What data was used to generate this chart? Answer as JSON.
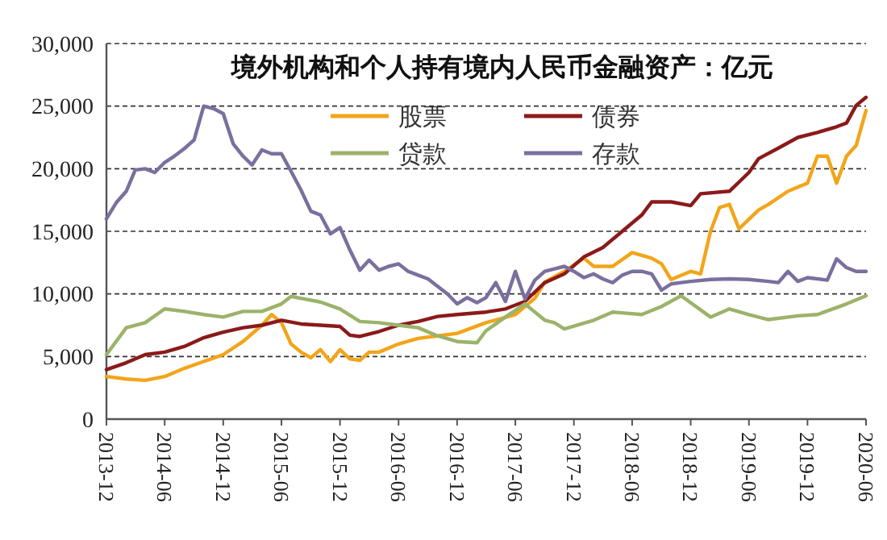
{
  "chart_data": {
    "type": "line",
    "title": "境外机构和个人持有境内人民币金融资产：亿元",
    "xlim": [
      "2013-12",
      "2020-06"
    ],
    "xticks": [
      "2013-12",
      "2014-06",
      "2014-12",
      "2015-06",
      "2015-12",
      "2016-06",
      "2016-12",
      "2017-06",
      "2017-12",
      "2018-06",
      "2018-12",
      "2019-06",
      "2019-12",
      "2020-06"
    ],
    "ylim": [
      0,
      30000
    ],
    "yticks": [
      {
        "value": 0,
        "label": "0"
      },
      {
        "value": 5000,
        "label": "5,000"
      },
      {
        "value": 10000,
        "label": "10,000"
      },
      {
        "value": 15000,
        "label": "15,000"
      },
      {
        "value": 20000,
        "label": "20,000"
      },
      {
        "value": 25000,
        "label": "25,000"
      },
      {
        "value": 30000,
        "label": "30,000"
      }
    ],
    "grid": "y",
    "legend": "top",
    "line_style": "solid",
    "marker": "none",
    "series": [
      {
        "name": "股票",
        "color": "#f2a51a",
        "x": [
          "2013-12",
          "2014-02",
          "2014-04",
          "2014-06",
          "2014-08",
          "2014-10",
          "2014-12",
          "2015-02",
          "2015-04",
          "2015-05",
          "2015-06",
          "2015-07",
          "2015-08",
          "2015-09",
          "2015-10",
          "2015-11",
          "2015-12",
          "2016-01",
          "2016-02",
          "2016-03",
          "2016-04",
          "2016-06",
          "2016-08",
          "2016-10",
          "2016-12",
          "2017-03",
          "2017-06",
          "2017-08",
          "2017-09",
          "2017-11",
          "2018-01",
          "2018-02",
          "2018-04",
          "2018-06",
          "2018-08",
          "2018-09",
          "2018-10",
          "2018-12",
          "2019-01",
          "2019-02",
          "2019-03",
          "2019-04",
          "2019-05",
          "2019-07",
          "2019-08",
          "2019-10",
          "2019-12",
          "2020-01",
          "2020-02",
          "2020-03",
          "2020-04",
          "2020-05",
          "2020-06"
        ],
        "values": [
          3400,
          3200,
          3100,
          3400,
          4050,
          4600,
          5150,
          6200,
          7500,
          8350,
          7700,
          6000,
          5350,
          4900,
          5550,
          4600,
          5550,
          4800,
          4700,
          5350,
          5350,
          6000,
          6450,
          6650,
          6850,
          7700,
          8350,
          9650,
          10950,
          11800,
          12850,
          12200,
          12200,
          13300,
          12850,
          12400,
          11150,
          11800,
          11600,
          15000,
          16900,
          17150,
          15200,
          16700,
          17150,
          18200,
          18850,
          21000,
          21000,
          18850,
          21000,
          21850,
          24650
        ]
      },
      {
        "name": "债券",
        "color": "#8b1a1a",
        "x": [
          "2013-12",
          "2014-02",
          "2014-04",
          "2014-06",
          "2014-08",
          "2014-10",
          "2014-12",
          "2015-02",
          "2015-04",
          "2015-06",
          "2015-08",
          "2015-10",
          "2015-12",
          "2016-01",
          "2016-02",
          "2016-04",
          "2016-06",
          "2016-08",
          "2016-10",
          "2016-12",
          "2017-03",
          "2017-05",
          "2017-07",
          "2017-09",
          "2017-11",
          "2018-01",
          "2018-03",
          "2018-05",
          "2018-07",
          "2018-08",
          "2018-10",
          "2018-12",
          "2019-01",
          "2019-04",
          "2019-06",
          "2019-07",
          "2019-09",
          "2019-11",
          "2020-01",
          "2020-03",
          "2020-04",
          "2020-05",
          "2020-06"
        ],
        "values": [
          3950,
          4500,
          5150,
          5350,
          5800,
          6500,
          6950,
          7300,
          7500,
          7900,
          7600,
          7500,
          7400,
          6700,
          6600,
          7000,
          7500,
          7800,
          8200,
          8350,
          8550,
          8800,
          9400,
          10900,
          11600,
          12950,
          13700,
          15000,
          16300,
          17350,
          17350,
          17050,
          18000,
          18200,
          19700,
          20800,
          21650,
          22500,
          22900,
          23350,
          23650,
          25050,
          25700
        ]
      },
      {
        "name": "贷款",
        "color": "#9bb36a",
        "x": [
          "2013-12",
          "2014-02",
          "2014-04",
          "2014-06",
          "2014-08",
          "2014-10",
          "2014-12",
          "2015-02",
          "2015-04",
          "2015-06",
          "2015-07",
          "2015-08",
          "2015-10",
          "2015-12",
          "2016-02",
          "2016-04",
          "2016-06",
          "2016-08",
          "2016-10",
          "2016-12",
          "2017-02",
          "2017-03",
          "2017-05",
          "2017-07",
          "2017-09",
          "2017-10",
          "2017-11",
          "2018-02",
          "2018-04",
          "2018-07",
          "2018-09",
          "2018-11",
          "2019-02",
          "2019-04",
          "2019-06",
          "2019-08",
          "2019-11",
          "2020-01",
          "2020-04",
          "2020-06"
        ],
        "values": [
          5150,
          7300,
          7700,
          8800,
          8600,
          8350,
          8150,
          8600,
          8600,
          9200,
          9800,
          9650,
          9350,
          8800,
          7800,
          7700,
          7500,
          7300,
          6650,
          6200,
          6100,
          7050,
          8150,
          9200,
          7900,
          7700,
          7200,
          7900,
          8550,
          8350,
          9000,
          9850,
          8150,
          8800,
          8350,
          7950,
          8250,
          8350,
          9200,
          9850
        ]
      },
      {
        "name": "存款",
        "color": "#7b6f9e",
        "x": [
          "2013-12",
          "2014-01",
          "2014-02",
          "2014-03",
          "2014-04",
          "2014-05",
          "2014-06",
          "2014-07",
          "2014-08",
          "2014-09",
          "2014-10",
          "2014-11",
          "2014-12",
          "2015-01",
          "2015-02",
          "2015-03",
          "2015-04",
          "2015-05",
          "2015-06",
          "2015-07",
          "2015-08",
          "2015-09",
          "2015-10",
          "2015-11",
          "2015-12",
          "2016-01",
          "2016-02",
          "2016-03",
          "2016-04",
          "2016-05",
          "2016-06",
          "2016-07",
          "2016-08",
          "2016-09",
          "2016-10",
          "2016-11",
          "2016-12",
          "2017-01",
          "2017-02",
          "2017-03",
          "2017-04",
          "2017-05",
          "2017-06",
          "2017-07",
          "2017-08",
          "2017-09",
          "2017-10",
          "2017-11",
          "2017-12",
          "2018-01",
          "2018-02",
          "2018-03",
          "2018-04",
          "2018-05",
          "2018-06",
          "2018-07",
          "2018-08",
          "2018-09",
          "2018-10",
          "2018-11",
          "2018-12",
          "2019-02",
          "2019-04",
          "2019-06",
          "2019-08",
          "2019-09",
          "2019-10",
          "2019-11",
          "2019-12",
          "2020-02",
          "2020-03",
          "2020-04",
          "2020-05",
          "2020-06"
        ],
        "values": [
          16000,
          17300,
          18200,
          19900,
          20000,
          19700,
          20500,
          21000,
          21600,
          22300,
          25000,
          24800,
          24400,
          22000,
          21000,
          20300,
          21500,
          21200,
          21200,
          19800,
          18300,
          16600,
          16300,
          14800,
          15300,
          13500,
          11900,
          12700,
          11900,
          12200,
          12400,
          11800,
          11500,
          11200,
          10600,
          10000,
          9200,
          9700,
          9300,
          9700,
          10900,
          9400,
          11800,
          9600,
          11100,
          11800,
          12000,
          12200,
          11800,
          11300,
          11600,
          11200,
          10900,
          11500,
          11800,
          11800,
          11600,
          10300,
          10800,
          10900,
          11000,
          11150,
          11200,
          11150,
          11000,
          10900,
          11800,
          11000,
          11300,
          11100,
          12800,
          12100,
          11800,
          11800
        ]
      }
    ]
  }
}
